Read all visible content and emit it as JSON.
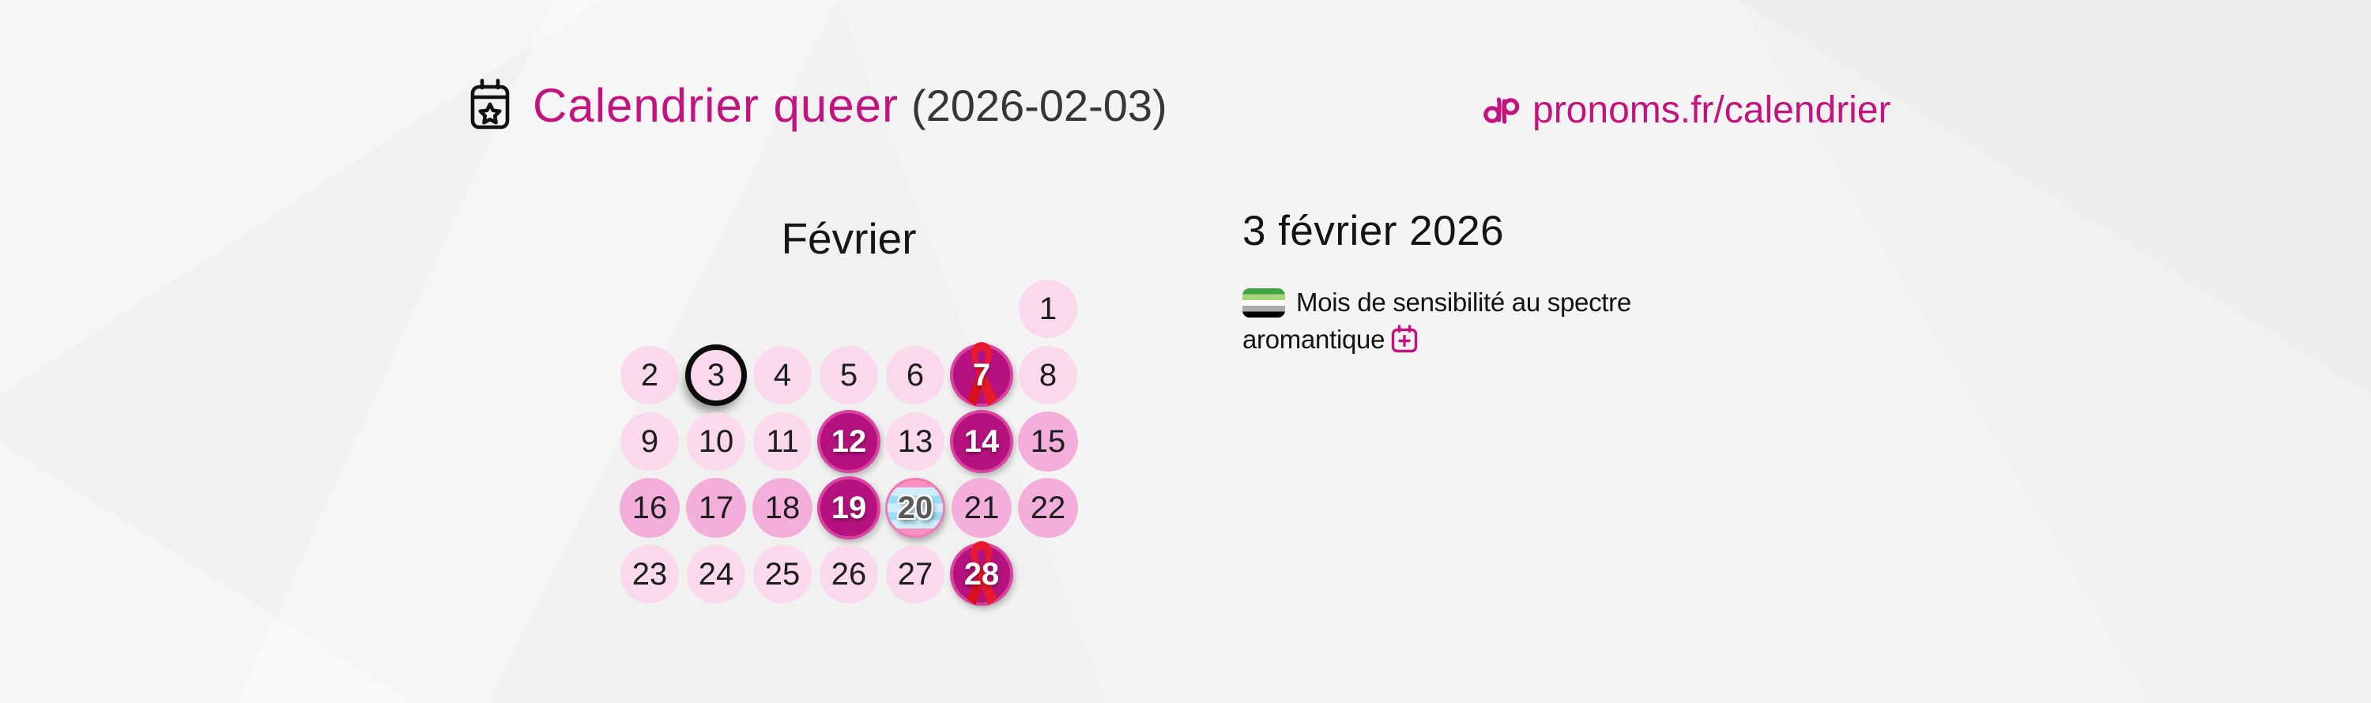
{
  "header": {
    "title": "Calendrier queer",
    "date_paren": "(2026-02-03)",
    "link_text": "pronoms.fr/calendrier"
  },
  "colors": {
    "magenta": "#c2137f",
    "day_light": "#fbd9ed",
    "day_medium": "#f4aeda",
    "day_event": "#b5127f",
    "day_event_border": "#d844a0",
    "ribbon_red": "#e8192c",
    "today_ring": "#0c0c0c",
    "trans_pink": "#f990bf",
    "trans_blue_light": "#cdeefa",
    "trans_blue": "#9cdcf4",
    "text_dark": "#161616"
  },
  "calendar": {
    "month_label": "Février",
    "days": [
      {
        "n": 1,
        "row": 1,
        "col": 7,
        "type": "light"
      },
      {
        "n": 2,
        "row": 2,
        "col": 1,
        "type": "light"
      },
      {
        "n": 3,
        "row": 2,
        "col": 2,
        "type": "light",
        "today": true
      },
      {
        "n": 4,
        "row": 2,
        "col": 3,
        "type": "light"
      },
      {
        "n": 5,
        "row": 2,
        "col": 4,
        "type": "light"
      },
      {
        "n": 6,
        "row": 2,
        "col": 5,
        "type": "light"
      },
      {
        "n": 7,
        "row": 2,
        "col": 6,
        "type": "event",
        "ribbon": true
      },
      {
        "n": 8,
        "row": 2,
        "col": 7,
        "type": "light"
      },
      {
        "n": 9,
        "row": 3,
        "col": 1,
        "type": "light"
      },
      {
        "n": 10,
        "row": 3,
        "col": 2,
        "type": "light"
      },
      {
        "n": 11,
        "row": 3,
        "col": 3,
        "type": "light"
      },
      {
        "n": 12,
        "row": 3,
        "col": 4,
        "type": "event"
      },
      {
        "n": 13,
        "row": 3,
        "col": 5,
        "type": "light"
      },
      {
        "n": 14,
        "row": 3,
        "col": 6,
        "type": "event"
      },
      {
        "n": 15,
        "row": 3,
        "col": 7,
        "type": "medium"
      },
      {
        "n": 16,
        "row": 4,
        "col": 1,
        "type": "medium"
      },
      {
        "n": 17,
        "row": 4,
        "col": 2,
        "type": "medium"
      },
      {
        "n": 18,
        "row": 4,
        "col": 3,
        "type": "medium"
      },
      {
        "n": 19,
        "row": 4,
        "col": 4,
        "type": "event"
      },
      {
        "n": 20,
        "row": 4,
        "col": 5,
        "type": "trans"
      },
      {
        "n": 21,
        "row": 4,
        "col": 6,
        "type": "medium"
      },
      {
        "n": 22,
        "row": 4,
        "col": 7,
        "type": "medium"
      },
      {
        "n": 23,
        "row": 5,
        "col": 1,
        "type": "light"
      },
      {
        "n": 24,
        "row": 5,
        "col": 2,
        "type": "light"
      },
      {
        "n": 25,
        "row": 5,
        "col": 3,
        "type": "light"
      },
      {
        "n": 26,
        "row": 5,
        "col": 4,
        "type": "light"
      },
      {
        "n": 27,
        "row": 5,
        "col": 5,
        "type": "light"
      },
      {
        "n": 28,
        "row": 5,
        "col": 6,
        "type": "event",
        "ribbon": true
      }
    ]
  },
  "detail": {
    "heading": "3 février 2026",
    "event_text": "Mois de sensibilité au spectre aromantique",
    "flag_stripes": [
      "#3DA542",
      "#A8D47A",
      "#FFFFFF",
      "#ABABAB",
      "#000000"
    ]
  }
}
